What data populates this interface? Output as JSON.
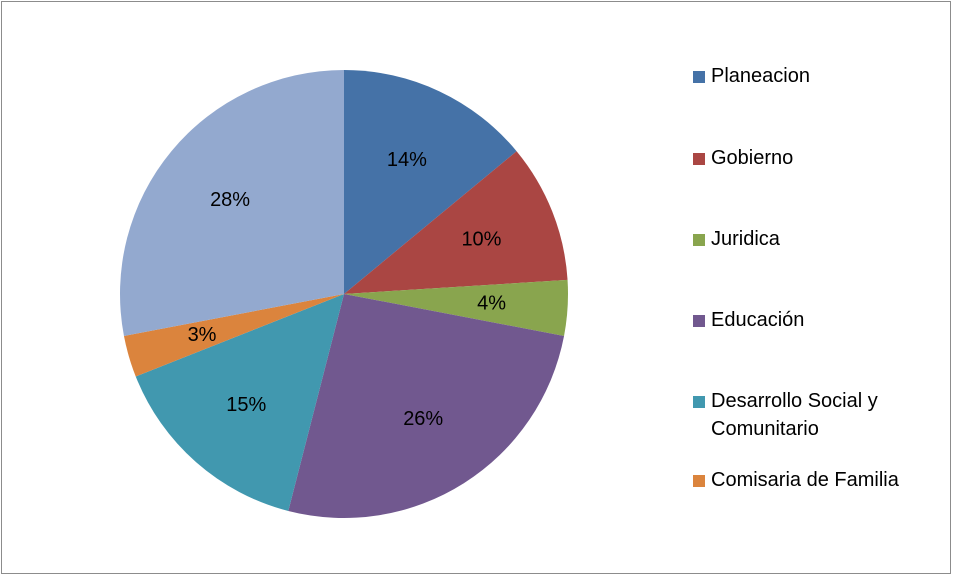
{
  "chart_data": {
    "type": "pie",
    "title": "",
    "series": [
      {
        "categories": [
          "Planeacion",
          "Gobierno",
          "Juridica",
          "Educación",
          "Desarrollo Social y Comunitario",
          "Comisaria de Familia",
          ""
        ],
        "values": [
          14,
          10,
          4,
          26,
          15,
          3,
          28
        ],
        "labels": [
          "14%",
          "10%",
          "4%",
          "26%",
          "15%",
          "3%",
          "28%"
        ],
        "colors": [
          "#4572A7",
          "#AA4643",
          "#89A54E",
          "#71588F",
          "#4198AF",
          "#DB843D",
          "#93A9CF"
        ]
      }
    ],
    "legend": {
      "position": "right",
      "entries": [
        {
          "label": "Planeacion",
          "color": "#4572A7"
        },
        {
          "label": "Gobierno",
          "color": "#AA4643"
        },
        {
          "label": "Juridica",
          "color": "#89A54E"
        },
        {
          "label": "Educación",
          "color": "#71588F"
        },
        {
          "label": "Desarrollo Social y Comunitario",
          "color": "#4198AF"
        },
        {
          "label": "Comisaria de Familia",
          "color": "#DB843D"
        }
      ]
    }
  }
}
